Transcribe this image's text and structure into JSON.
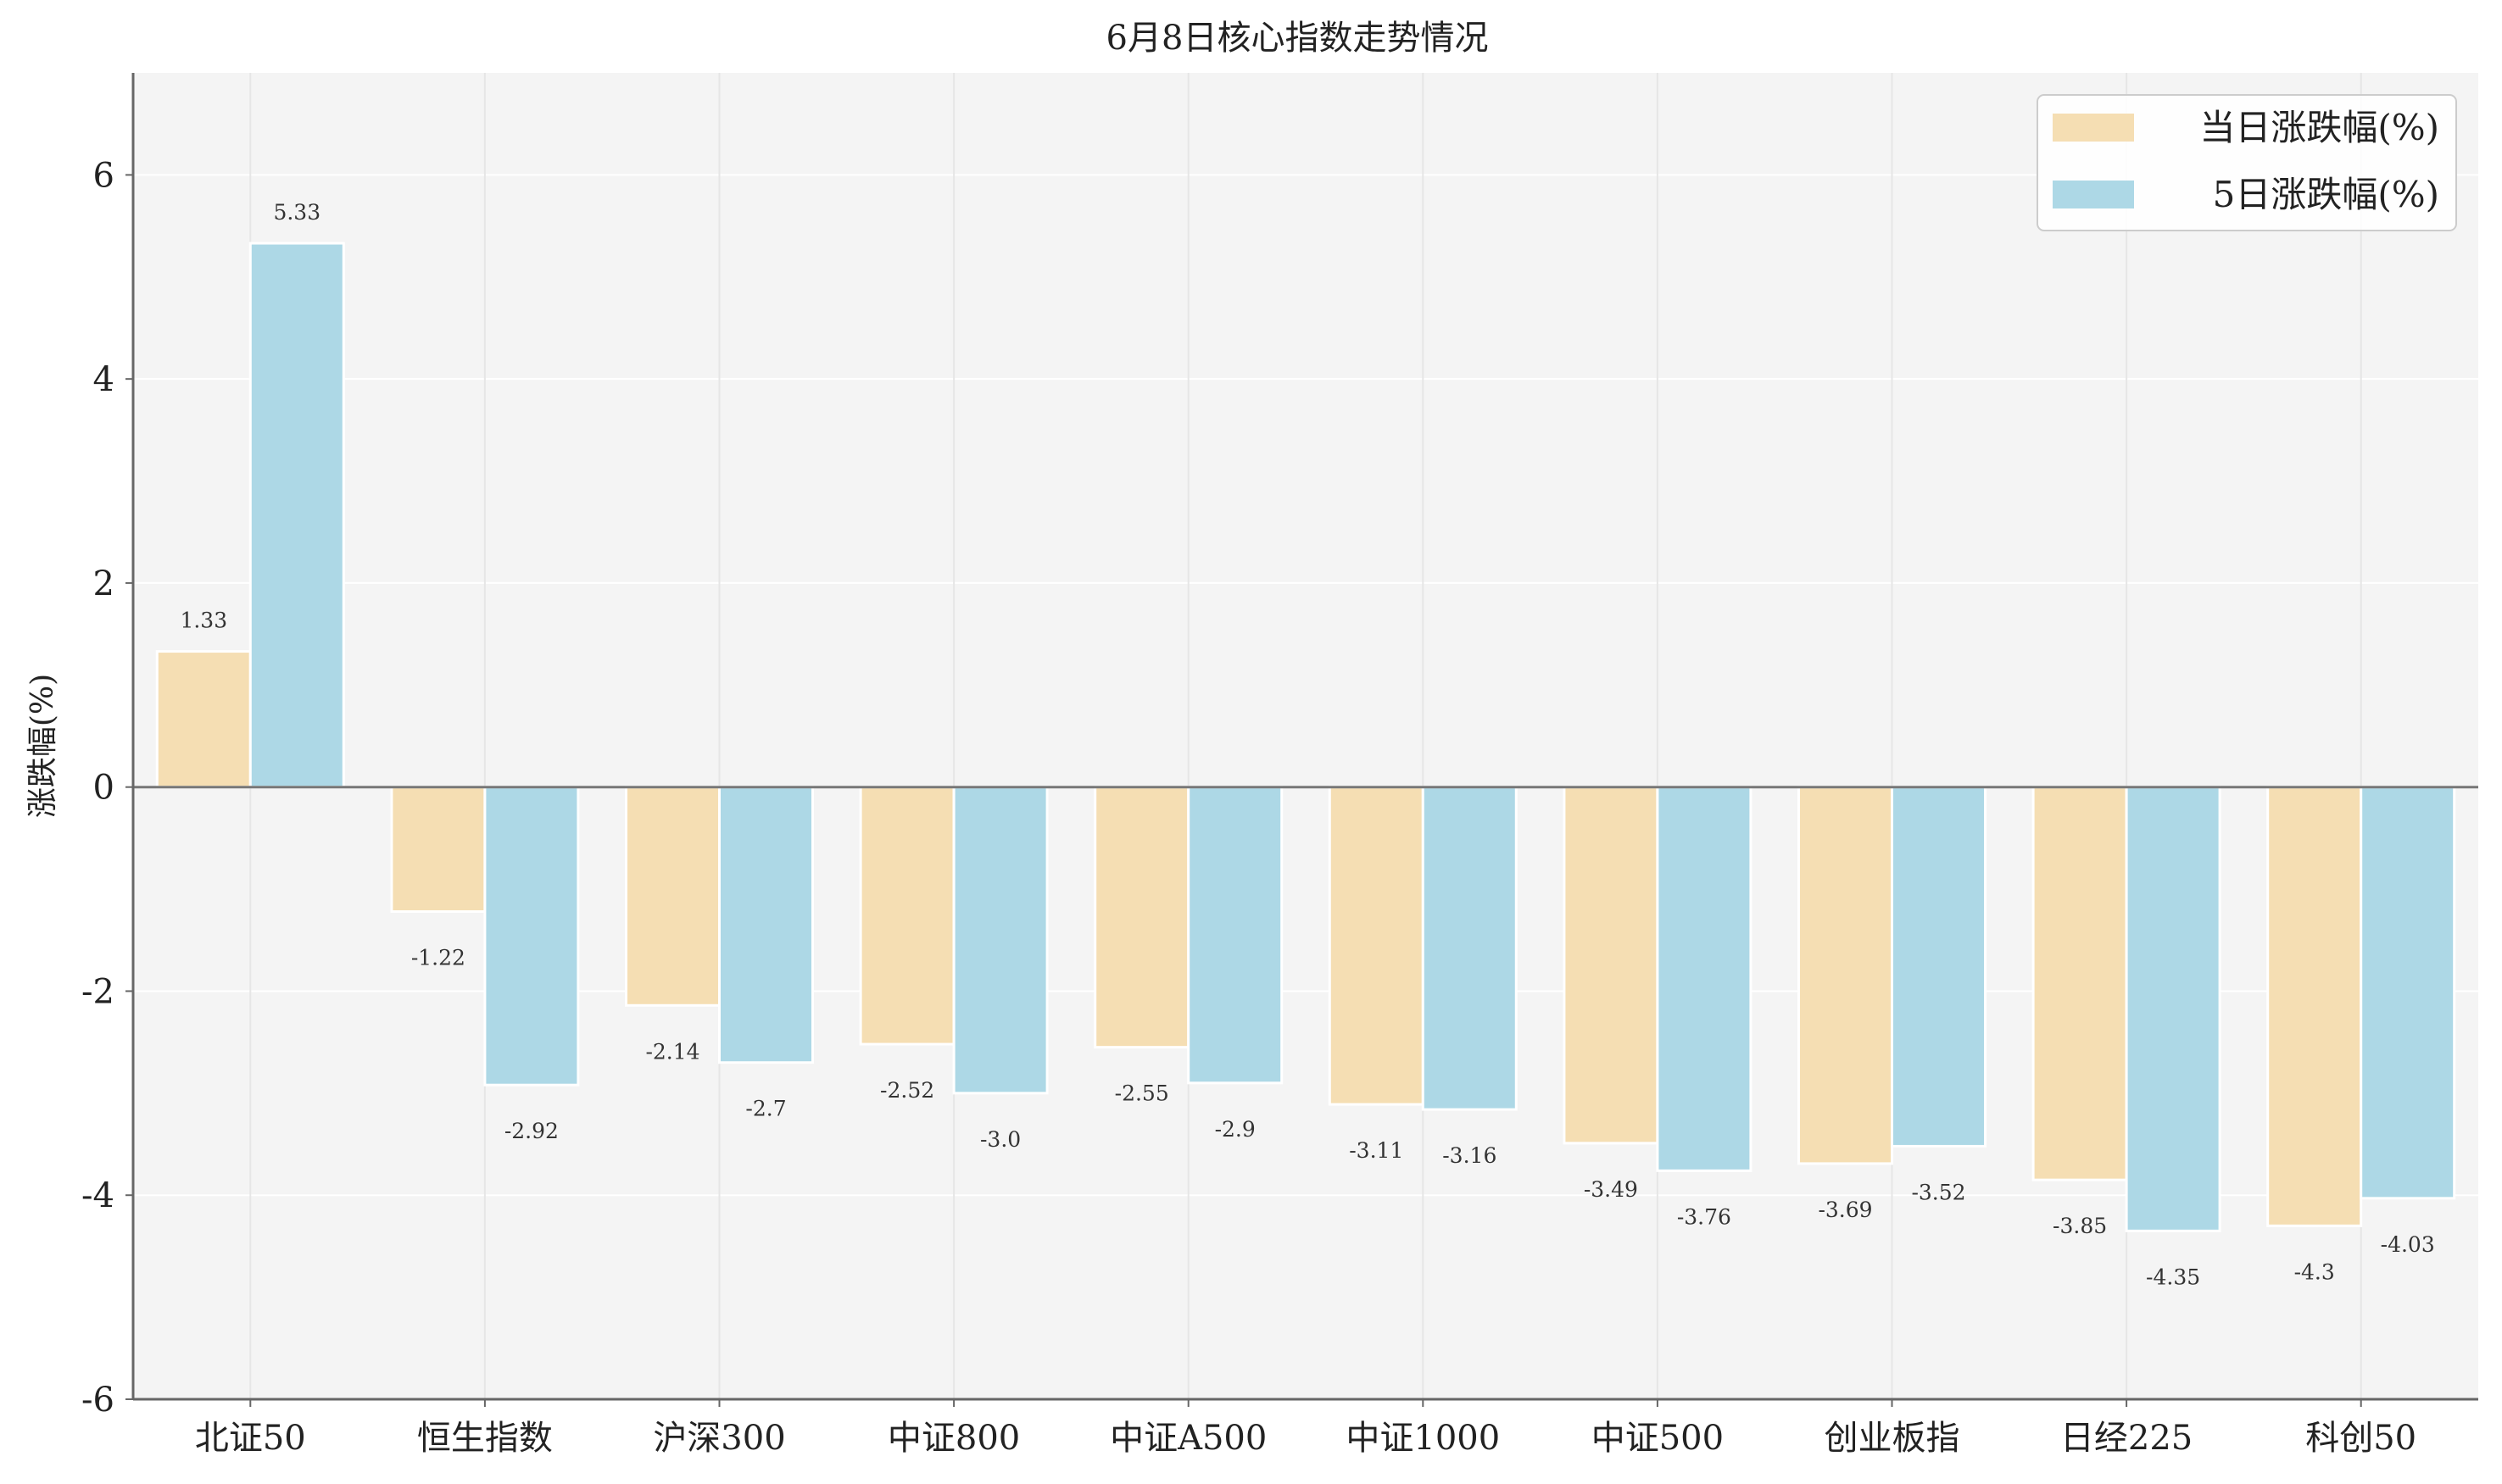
{
  "chart_data": {
    "type": "bar",
    "title": "6月8日核心指数走势情况",
    "xlabel": "",
    "ylabel": "涨跌幅(%)",
    "ylim": [
      -6,
      7
    ],
    "yticks": [
      -6,
      -4,
      -2,
      0,
      2,
      4,
      6
    ],
    "grid": true,
    "legend_position": "top-right",
    "categories": [
      "北证50",
      "恒生指数",
      "沪深300",
      "中证800",
      "中证A500",
      "中证1000",
      "中证500",
      "创业板指",
      "日经225",
      "科创50"
    ],
    "series": [
      {
        "name": "当日涨跌幅(%)",
        "color": "#f5deb3",
        "values": [
          1.33,
          -1.22,
          -2.14,
          -2.52,
          -2.55,
          -3.11,
          -3.49,
          -3.69,
          -3.85,
          -4.3
        ],
        "labels": [
          "1.33",
          "-1.22",
          "-2.14",
          "-2.52",
          "-2.55",
          "-3.11",
          "-3.49",
          "-3.69",
          "-3.85",
          "-4.3"
        ]
      },
      {
        "name": "5日涨跌幅(%)",
        "color": "#add8e6",
        "values": [
          5.33,
          -2.92,
          -2.7,
          -3.0,
          -2.9,
          -3.16,
          -3.76,
          -3.52,
          -4.35,
          -4.03
        ],
        "labels": [
          "5.33",
          "-2.92",
          "-2.7",
          "-3.0",
          "-2.9",
          "-3.16",
          "-3.76",
          "-3.52",
          "-4.35",
          "-4.03"
        ]
      }
    ]
  }
}
